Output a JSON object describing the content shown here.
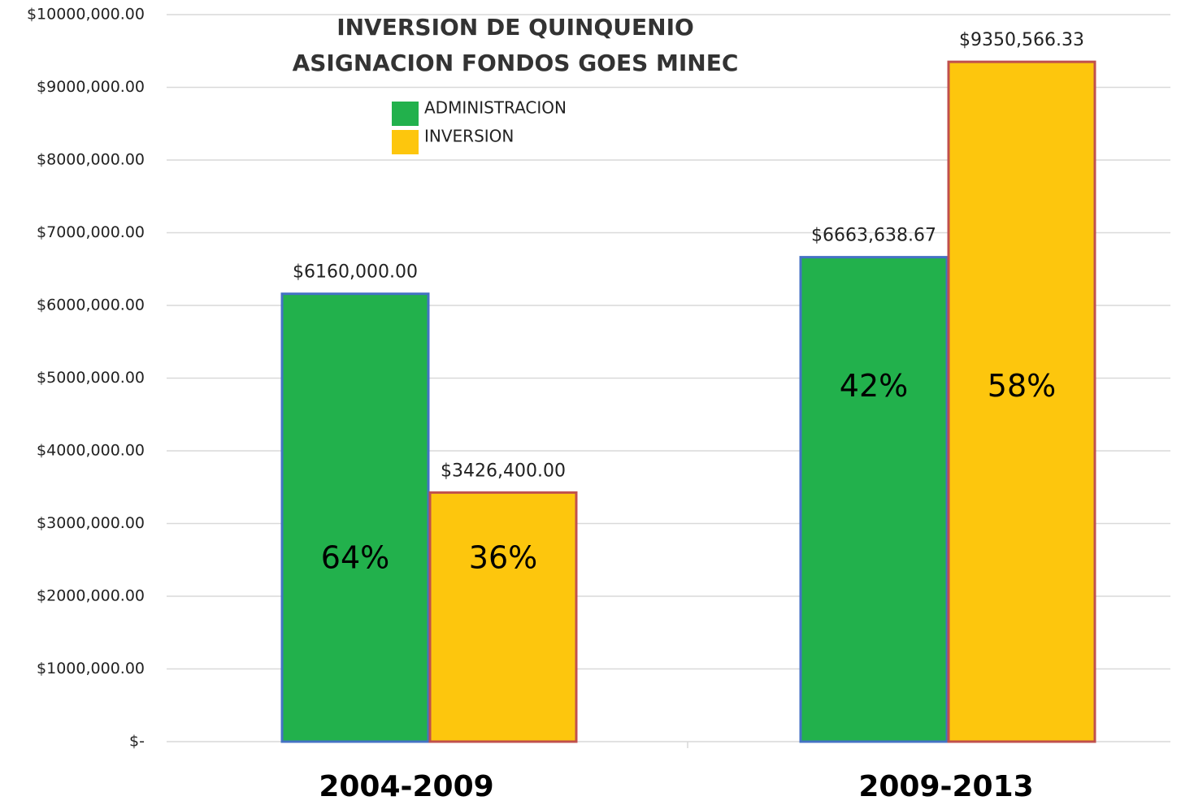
{
  "chart_data": {
    "type": "bar",
    "title": [
      "INVERSION DE QUINQUENIO",
      "ASIGNACION FONDOS GOES MINEC"
    ],
    "categories": [
      "2004-2009",
      "2009-2013"
    ],
    "series": [
      {
        "name": "ADMINISTRACION",
        "color": "#22b14c",
        "edgecolor": "#4472c4",
        "values": [
          6160000,
          6663638.67
        ],
        "value_labels": [
          "$6160,000.00",
          "$6663,638.67"
        ],
        "percent_labels": [
          "64%",
          "42%"
        ]
      },
      {
        "name": "INVERSION",
        "color": "#fdc60d",
        "edgecolor": "#c0504d",
        "values": [
          3426400,
          9350566.33
        ],
        "value_labels": [
          "$3426,400.00",
          "$9350,566.33"
        ],
        "percent_labels": [
          "36%",
          "58%"
        ]
      }
    ],
    "ylim": [
      0,
      10000000
    ],
    "yticks": [
      {
        "value": 0,
        "label": "$-"
      },
      {
        "value": 1000000,
        "label": "$1000,000.00"
      },
      {
        "value": 2000000,
        "label": "$2000,000.00"
      },
      {
        "value": 3000000,
        "label": "$3000,000.00"
      },
      {
        "value": 4000000,
        "label": "$4000,000.00"
      },
      {
        "value": 5000000,
        "label": "$5000,000.00"
      },
      {
        "value": 6000000,
        "label": "$6000,000.00"
      },
      {
        "value": 7000000,
        "label": "$7000,000.00"
      },
      {
        "value": 8000000,
        "label": "$8000,000.00"
      },
      {
        "value": 9000000,
        "label": "$9000,000.00"
      },
      {
        "value": 10000000,
        "label": "$10000,000.00"
      }
    ],
    "grid": true
  }
}
